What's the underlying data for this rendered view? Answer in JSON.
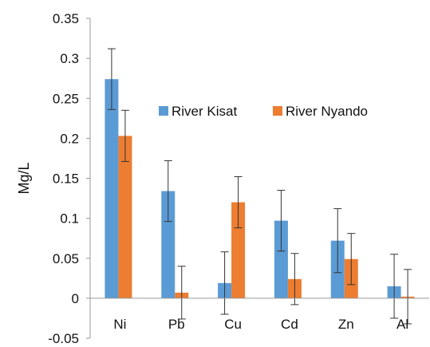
{
  "chart_data": {
    "type": "bar",
    "title": "",
    "xlabel": "",
    "ylabel": "Mg/L",
    "ylim": [
      -0.05,
      0.35
    ],
    "yticks": [
      -0.05,
      0,
      0.05,
      0.1,
      0.15,
      0.2,
      0.25,
      0.3,
      0.35
    ],
    "ytick_labels": [
      "-0.05",
      "0",
      "0.05",
      "0.1",
      "0.15",
      "0.2",
      "0.25",
      "0.3",
      "0.35"
    ],
    "categories": [
      "Ni",
      "Pb",
      "Cu",
      "Cd",
      "Zn",
      "Al"
    ],
    "series": [
      {
        "name": "River Kisat",
        "color": "#5B9BD5",
        "values": [
          0.274,
          0.134,
          0.019,
          0.097,
          0.072,
          0.015
        ],
        "errors": [
          0.038,
          0.038,
          0.039,
          0.038,
          0.04,
          0.04
        ]
      },
      {
        "name": "River Nyando",
        "color": "#ED7D31",
        "values": [
          0.203,
          0.007,
          0.12,
          0.024,
          0.049,
          0.002
        ],
        "errors": [
          0.032,
          0.033,
          0.032,
          0.032,
          0.032,
          0.034
        ]
      }
    ],
    "legend": {
      "position": "inside-top-center"
    },
    "grid": false
  }
}
